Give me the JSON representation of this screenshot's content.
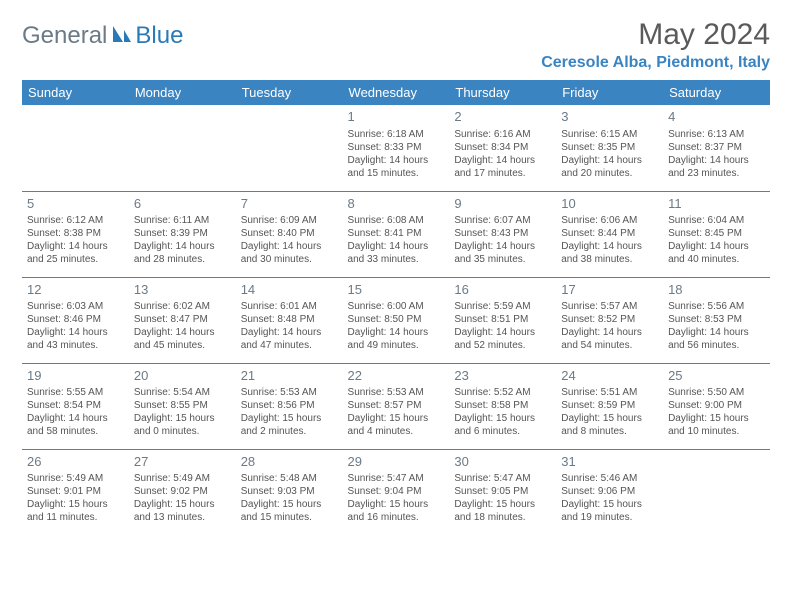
{
  "logo": {
    "text1": "General",
    "text2": "Blue"
  },
  "title": "May 2024",
  "location": "Ceresole Alba, Piedmont, Italy",
  "colors": {
    "header_bg": "#3a84c2",
    "header_fg": "#ffffff",
    "daynum": "#6b7a87",
    "text": "#555555",
    "logo_gray": "#6b7a87",
    "logo_blue": "#2a7ab8",
    "row_border": "#6b7a87"
  },
  "weekdays": [
    "Sunday",
    "Monday",
    "Tuesday",
    "Wednesday",
    "Thursday",
    "Friday",
    "Saturday"
  ],
  "weeks": [
    [
      null,
      null,
      null,
      {
        "n": "1",
        "sr": "6:18 AM",
        "ss": "8:33 PM",
        "dl": "14 hours and 15 minutes."
      },
      {
        "n": "2",
        "sr": "6:16 AM",
        "ss": "8:34 PM",
        "dl": "14 hours and 17 minutes."
      },
      {
        "n": "3",
        "sr": "6:15 AM",
        "ss": "8:35 PM",
        "dl": "14 hours and 20 minutes."
      },
      {
        "n": "4",
        "sr": "6:13 AM",
        "ss": "8:37 PM",
        "dl": "14 hours and 23 minutes."
      }
    ],
    [
      {
        "n": "5",
        "sr": "6:12 AM",
        "ss": "8:38 PM",
        "dl": "14 hours and 25 minutes."
      },
      {
        "n": "6",
        "sr": "6:11 AM",
        "ss": "8:39 PM",
        "dl": "14 hours and 28 minutes."
      },
      {
        "n": "7",
        "sr": "6:09 AM",
        "ss": "8:40 PM",
        "dl": "14 hours and 30 minutes."
      },
      {
        "n": "8",
        "sr": "6:08 AM",
        "ss": "8:41 PM",
        "dl": "14 hours and 33 minutes."
      },
      {
        "n": "9",
        "sr": "6:07 AM",
        "ss": "8:43 PM",
        "dl": "14 hours and 35 minutes."
      },
      {
        "n": "10",
        "sr": "6:06 AM",
        "ss": "8:44 PM",
        "dl": "14 hours and 38 minutes."
      },
      {
        "n": "11",
        "sr": "6:04 AM",
        "ss": "8:45 PM",
        "dl": "14 hours and 40 minutes."
      }
    ],
    [
      {
        "n": "12",
        "sr": "6:03 AM",
        "ss": "8:46 PM",
        "dl": "14 hours and 43 minutes."
      },
      {
        "n": "13",
        "sr": "6:02 AM",
        "ss": "8:47 PM",
        "dl": "14 hours and 45 minutes."
      },
      {
        "n": "14",
        "sr": "6:01 AM",
        "ss": "8:48 PM",
        "dl": "14 hours and 47 minutes."
      },
      {
        "n": "15",
        "sr": "6:00 AM",
        "ss": "8:50 PM",
        "dl": "14 hours and 49 minutes."
      },
      {
        "n": "16",
        "sr": "5:59 AM",
        "ss": "8:51 PM",
        "dl": "14 hours and 52 minutes."
      },
      {
        "n": "17",
        "sr": "5:57 AM",
        "ss": "8:52 PM",
        "dl": "14 hours and 54 minutes."
      },
      {
        "n": "18",
        "sr": "5:56 AM",
        "ss": "8:53 PM",
        "dl": "14 hours and 56 minutes."
      }
    ],
    [
      {
        "n": "19",
        "sr": "5:55 AM",
        "ss": "8:54 PM",
        "dl": "14 hours and 58 minutes."
      },
      {
        "n": "20",
        "sr": "5:54 AM",
        "ss": "8:55 PM",
        "dl": "15 hours and 0 minutes."
      },
      {
        "n": "21",
        "sr": "5:53 AM",
        "ss": "8:56 PM",
        "dl": "15 hours and 2 minutes."
      },
      {
        "n": "22",
        "sr": "5:53 AM",
        "ss": "8:57 PM",
        "dl": "15 hours and 4 minutes."
      },
      {
        "n": "23",
        "sr": "5:52 AM",
        "ss": "8:58 PM",
        "dl": "15 hours and 6 minutes."
      },
      {
        "n": "24",
        "sr": "5:51 AM",
        "ss": "8:59 PM",
        "dl": "15 hours and 8 minutes."
      },
      {
        "n": "25",
        "sr": "5:50 AM",
        "ss": "9:00 PM",
        "dl": "15 hours and 10 minutes."
      }
    ],
    [
      {
        "n": "26",
        "sr": "5:49 AM",
        "ss": "9:01 PM",
        "dl": "15 hours and 11 minutes."
      },
      {
        "n": "27",
        "sr": "5:49 AM",
        "ss": "9:02 PM",
        "dl": "15 hours and 13 minutes."
      },
      {
        "n": "28",
        "sr": "5:48 AM",
        "ss": "9:03 PM",
        "dl": "15 hours and 15 minutes."
      },
      {
        "n": "29",
        "sr": "5:47 AM",
        "ss": "9:04 PM",
        "dl": "15 hours and 16 minutes."
      },
      {
        "n": "30",
        "sr": "5:47 AM",
        "ss": "9:05 PM",
        "dl": "15 hours and 18 minutes."
      },
      {
        "n": "31",
        "sr": "5:46 AM",
        "ss": "9:06 PM",
        "dl": "15 hours and 19 minutes."
      },
      null
    ]
  ],
  "labels": {
    "sunrise": "Sunrise: ",
    "sunset": "Sunset: ",
    "daylight": "Daylight: "
  }
}
